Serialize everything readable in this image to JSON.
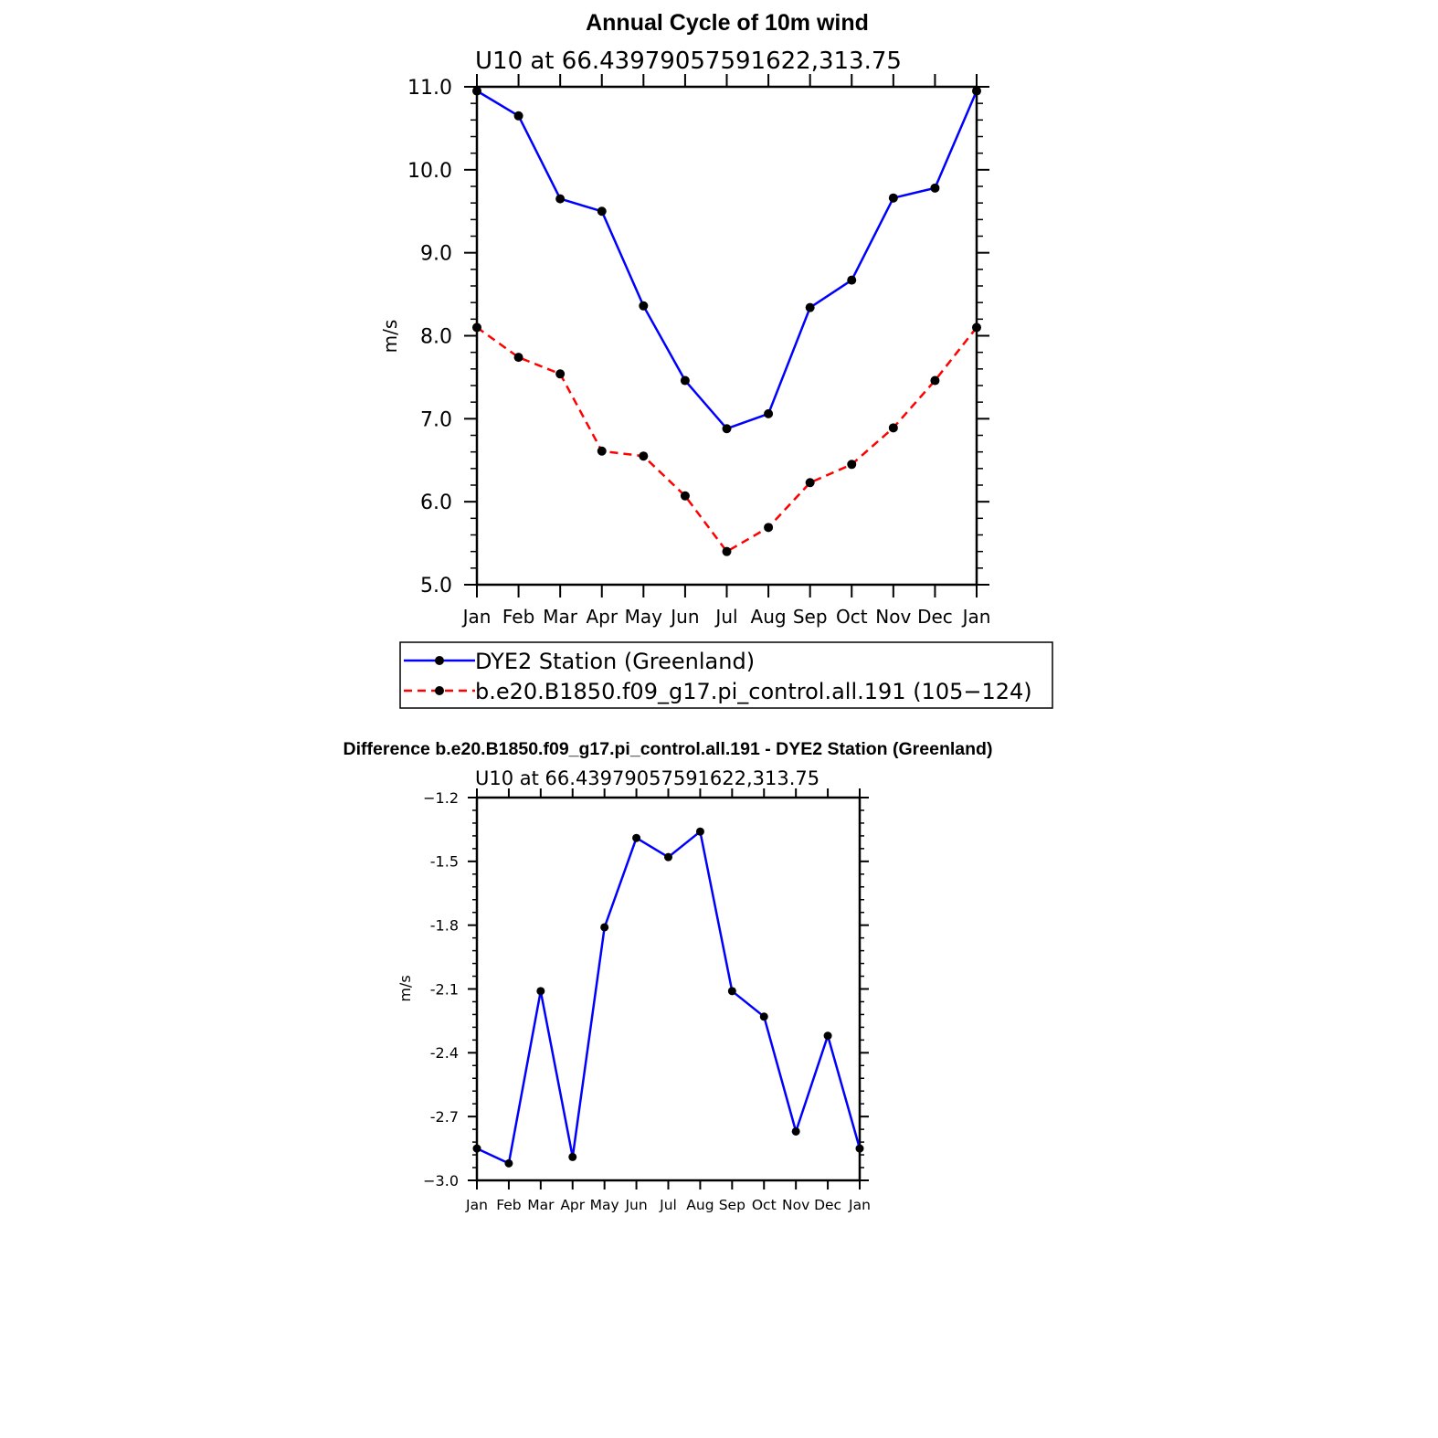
{
  "chart_data": [
    {
      "type": "line",
      "title": "Annual Cycle of 10m wind",
      "subtitle": "U10 at 66.43979057591622,313.75",
      "xlabel": "",
      "ylabel": "m/s",
      "categories": [
        "Jan",
        "Feb",
        "Mar",
        "Apr",
        "May",
        "Jun",
        "Jul",
        "Aug",
        "Sep",
        "Oct",
        "Nov",
        "Dec",
        "Jan"
      ],
      "y_tick_labels": [
        "5.0",
        "6.0",
        "7.0",
        "8.0",
        "9.0",
        "10.0",
        "11.0"
      ],
      "ylim": [
        5.0,
        11.0
      ],
      "y_major_step": 1.0,
      "grid": false,
      "legend_position": "below",
      "series": [
        {
          "name": "DYE2 Station (Greenland)",
          "color": "#0000ff",
          "dash": "solid",
          "values": [
            10.95,
            10.65,
            9.65,
            9.5,
            8.36,
            7.46,
            6.88,
            7.06,
            8.34,
            8.67,
            9.66,
            9.78,
            10.95
          ]
        },
        {
          "name": "b.e20.B1850.f09_g17.pi_control.all.191 (105−124)",
          "color": "#ff0000",
          "dash": "dashed",
          "values": [
            8.1,
            7.74,
            7.54,
            6.61,
            6.55,
            6.07,
            5.4,
            5.69,
            6.23,
            6.45,
            6.89,
            7.46,
            8.1
          ]
        }
      ]
    },
    {
      "type": "line",
      "title": "Difference b.e20.B1850.f09_g17.pi_control.all.191 - DYE2 Station (Greenland)",
      "subtitle": "U10 at 66.43979057591622,313.75",
      "xlabel": "",
      "ylabel": "m/s",
      "categories": [
        "Jan",
        "Feb",
        "Mar",
        "Apr",
        "May",
        "Jun",
        "Jul",
        "Aug",
        "Sep",
        "Oct",
        "Nov",
        "Dec",
        "Jan"
      ],
      "y_tick_labels": [
        "−3.0",
        "-2.7",
        "-2.4",
        "-2.1",
        "-1.8",
        "-1.5",
        "−1.2"
      ],
      "ylim": [
        -3.0,
        -1.2
      ],
      "y_major_step": 0.3,
      "grid": false,
      "series": [
        {
          "color": "#0000ff",
          "dash": "solid",
          "values": [
            -2.85,
            -2.92,
            -2.11,
            -2.89,
            -1.81,
            -1.39,
            -1.48,
            -1.36,
            -2.11,
            -2.23,
            -2.77,
            -2.32,
            -2.85
          ]
        }
      ]
    }
  ]
}
